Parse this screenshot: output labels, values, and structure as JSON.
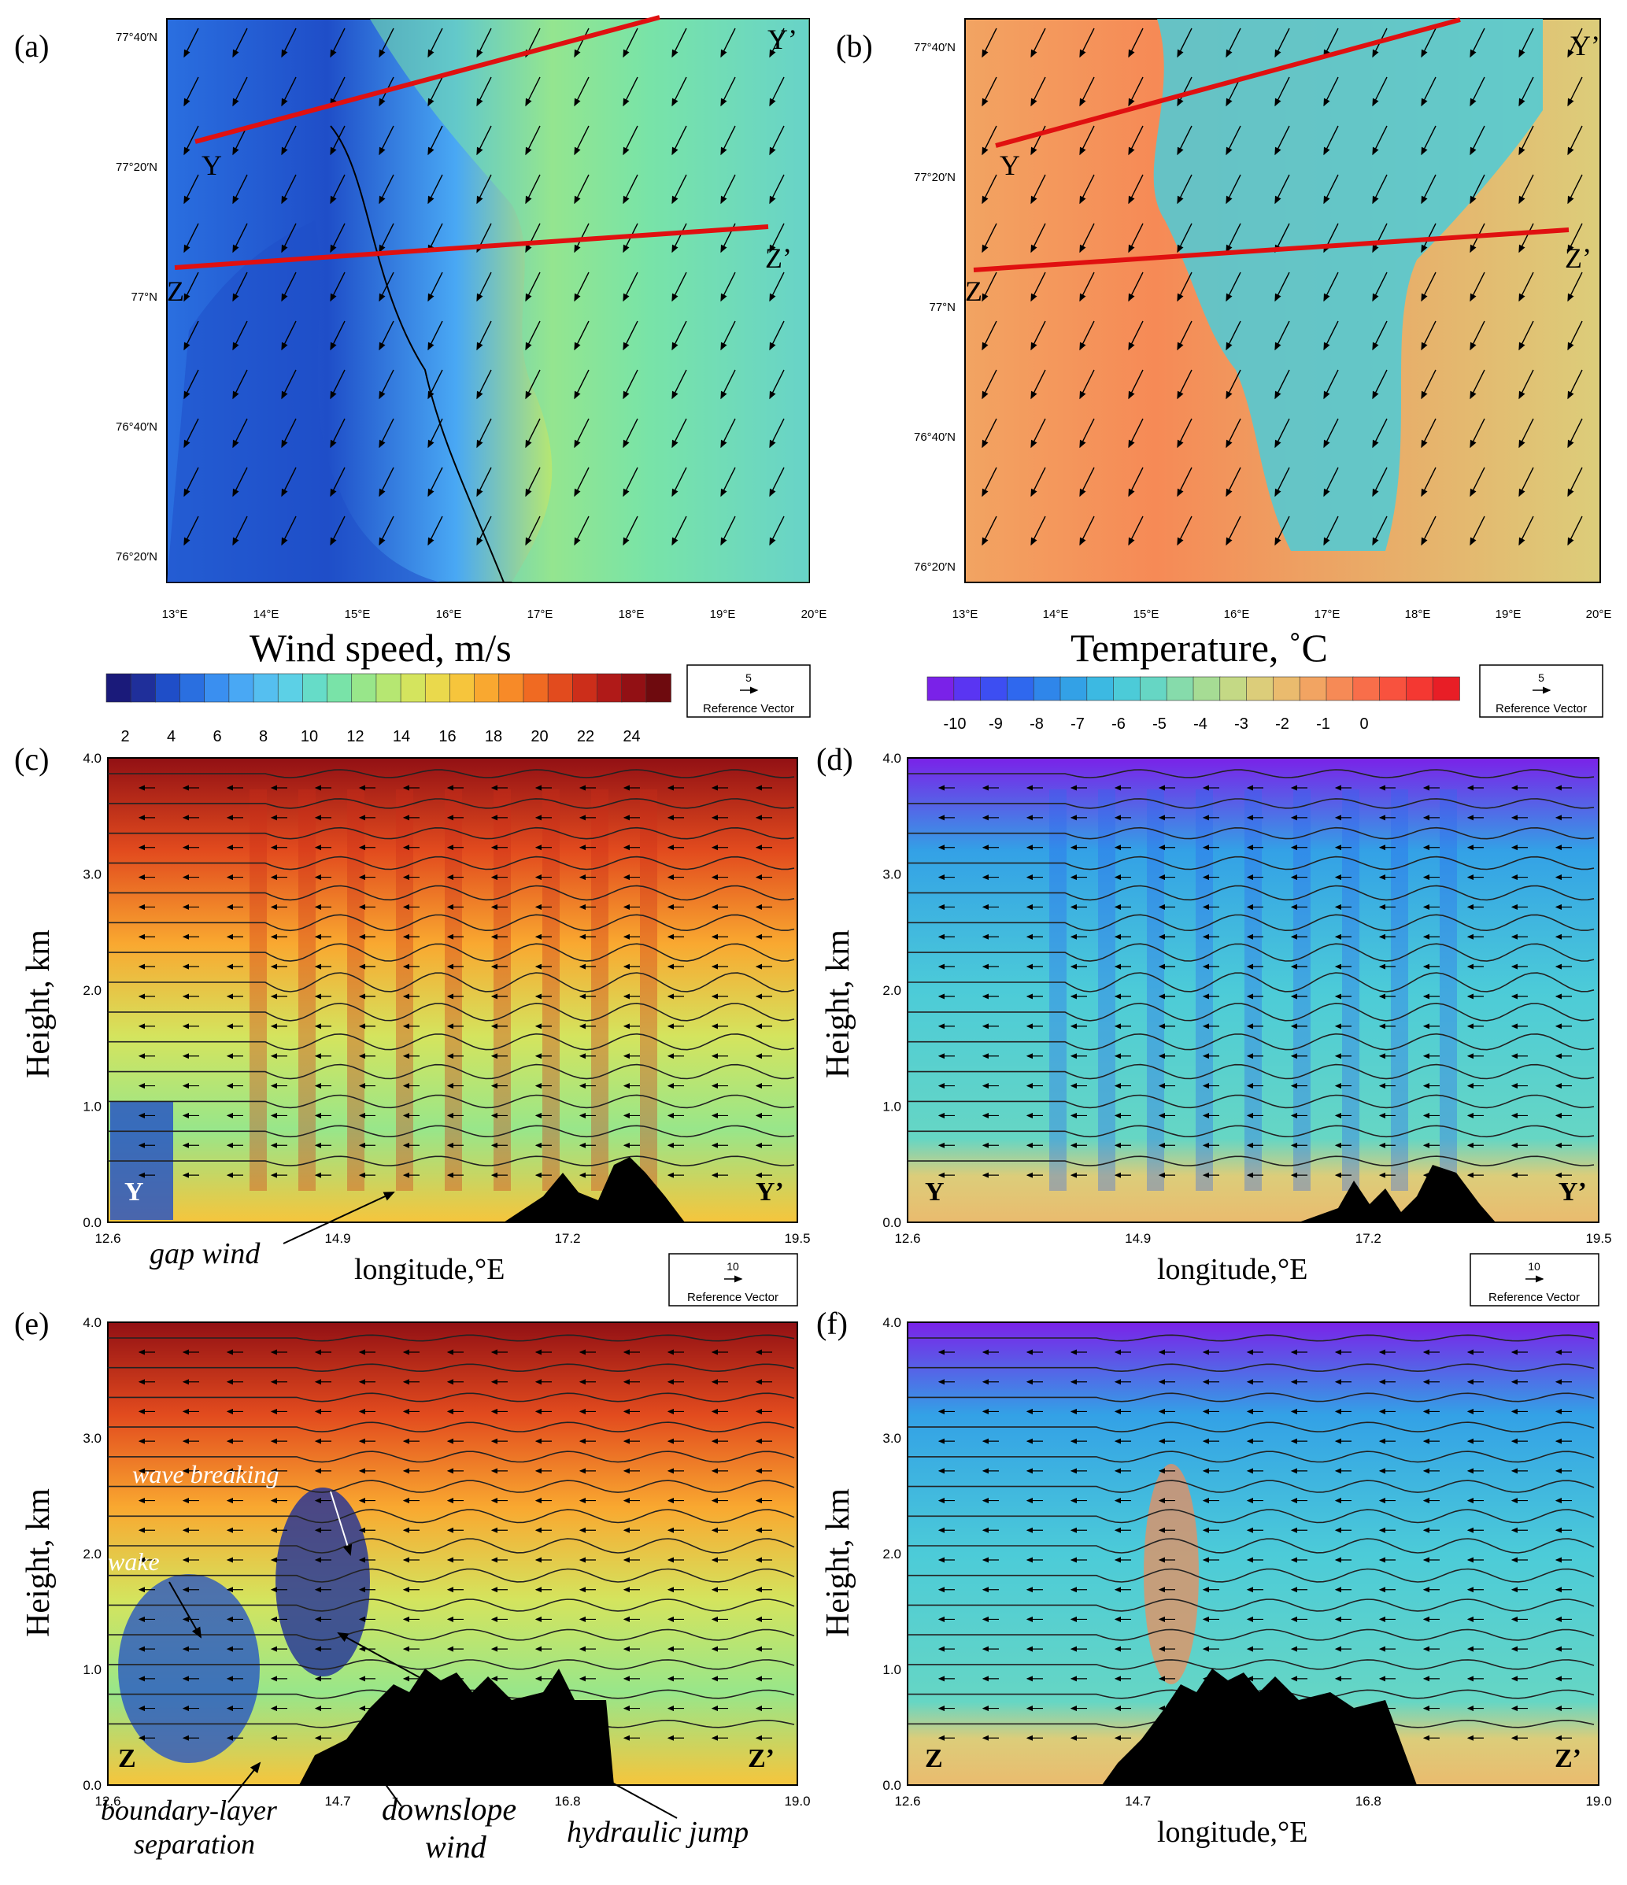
{
  "figure_labels": [
    "(a)",
    "(b)",
    "(c)",
    "(d)",
    "(e)",
    "(f)"
  ],
  "colorbar_wind": {
    "title": "Wind speed, m/s",
    "tick_labels": [
      "2",
      "4",
      "6",
      "8",
      "10",
      "12",
      "14",
      "16",
      "18",
      "20",
      "22",
      "24"
    ],
    "colors": [
      "#1a1a7a",
      "#1f2f9a",
      "#1f4ec8",
      "#2a6fe0",
      "#3a8ff0",
      "#49a8f4",
      "#55bff0",
      "#5cd0e6",
      "#66dcc8",
      "#79e3a8",
      "#98e68a",
      "#b6e772",
      "#d4e45e",
      "#ead94c",
      "#f6c53c",
      "#f9a830",
      "#f78a28",
      "#f06a22",
      "#e24b1e",
      "#cc2e1a",
      "#b01a18",
      "#921014",
      "#6e0a0e"
    ]
  },
  "colorbar_temp": {
    "title": "Temperature, ˚C",
    "tick_labels": [
      "-10",
      "-9",
      "-8",
      "-7",
      "-6",
      "-5",
      "-4",
      "-3",
      "-2",
      "-1",
      "0"
    ],
    "colors": [
      "#7a22e8",
      "#5a35f2",
      "#3d4ef2",
      "#2f68ee",
      "#2f86ea",
      "#33a1e6",
      "#3cb9e2",
      "#4ccbd8",
      "#66d6c4",
      "#86dbab",
      "#a6dc94",
      "#c4d985",
      "#dccd7a",
      "#eabb6e",
      "#f2a462",
      "#f68a56",
      "#f86e4a",
      "#f8523e",
      "#f43832",
      "#e81e26"
    ]
  },
  "reference_vector": {
    "value_small": "5",
    "value_large": "10",
    "label": "Reference Vector"
  },
  "map_axes": {
    "lat_labels": [
      "77°40′N",
      "77°20′N",
      "77°N",
      "76°40′N",
      "76°20′N"
    ],
    "lon_labels": [
      "13°E",
      "14°E",
      "15°E",
      "16°E",
      "17°E",
      "18°E",
      "19°E",
      "20°E"
    ]
  },
  "section_labels": {
    "Y": "Y",
    "Y_prime": "Y’",
    "Z": "Z",
    "Z_prime": "Z’"
  },
  "cross_section_axes": {
    "ylabel": "Height, km",
    "xlabel": "longitude,°E",
    "y_ticks": [
      "0.0",
      "1.0",
      "2.0",
      "3.0",
      "4.0"
    ],
    "x_ticks_YY": [
      "12.6",
      "14.9",
      "17.2",
      "19.5"
    ],
    "x_ticks_ZZ": [
      "12.6",
      "14.7",
      "16.8",
      "19.0"
    ]
  },
  "annotations": {
    "gap_wind": "gap wind",
    "wave_breaking": "wave breaking",
    "wake": "wake",
    "boundary_layer_1": "boundary-layer",
    "boundary_layer_2": "separation",
    "downslope_1": "downslope",
    "downslope_2": "wind",
    "hydraulic_jump": "hydraulic jump"
  },
  "chart_data": [
    {
      "type": "heatmap",
      "panel": "(a)",
      "variable": "Wind speed",
      "unit": "m/s",
      "xlim": [
        13,
        20
      ],
      "ylim": [
        76.33,
        77.7
      ],
      "value_range": [
        2,
        24
      ],
      "sections": [
        {
          "name": "Y-Y’",
          "from": [
            13.3,
            77.42
          ],
          "to": [
            18.4,
            77.78
          ]
        },
        {
          "name": "Z-Z’",
          "from": [
            13.1,
            77.15
          ],
          "to": [
            19.6,
            77.22
          ]
        }
      ]
    },
    {
      "type": "heatmap",
      "panel": "(b)",
      "variable": "Temperature",
      "unit": "˚C",
      "xlim": [
        13,
        20
      ],
      "ylim": [
        76.33,
        77.7
      ],
      "value_range": [
        -10,
        0
      ]
    },
    {
      "type": "heatmap",
      "panel": "(c)",
      "variable": "Wind speed",
      "section": "Y-Y’",
      "xlim": [
        12.6,
        19.5
      ],
      "ylim": [
        0,
        4
      ]
    },
    {
      "type": "heatmap",
      "panel": "(d)",
      "variable": "Temperature",
      "section": "Y-Y’",
      "xlim": [
        12.6,
        19.5
      ],
      "ylim": [
        0,
        4
      ]
    },
    {
      "type": "heatmap",
      "panel": "(e)",
      "variable": "Wind speed",
      "section": "Z-Z’",
      "xlim": [
        12.6,
        19.0
      ],
      "ylim": [
        0,
        4
      ]
    },
    {
      "type": "heatmap",
      "panel": "(f)",
      "variable": "Temperature",
      "section": "Z-Z’",
      "xlim": [
        12.6,
        19.0
      ],
      "ylim": [
        0,
        4
      ]
    }
  ]
}
